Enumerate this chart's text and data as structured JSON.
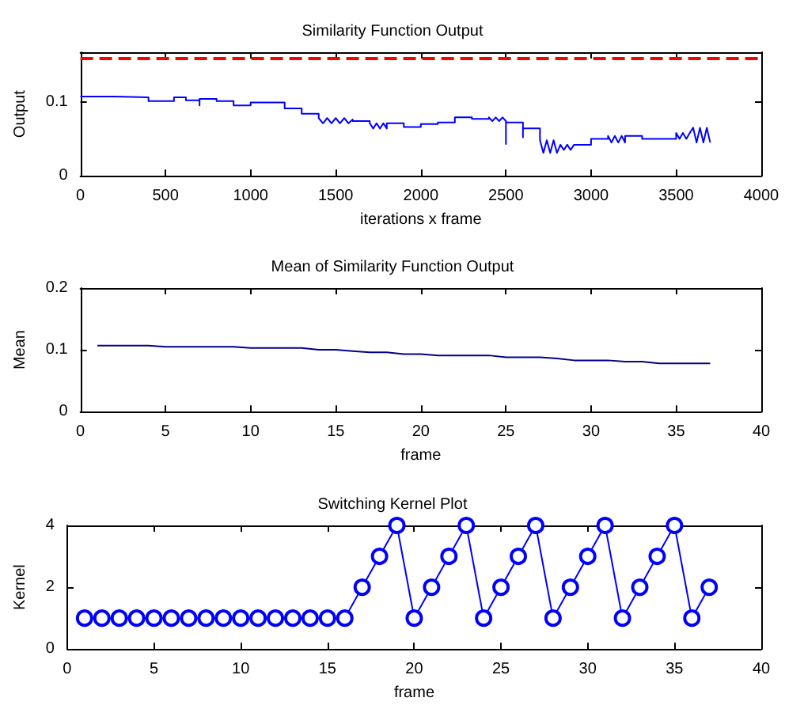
{
  "chart_data": [
    {
      "type": "line",
      "title": "Similarity Function Output",
      "xlabel": "iterations x frame",
      "ylabel": "Output",
      "x": [
        0,
        200,
        200,
        400,
        400,
        550,
        550,
        620,
        620,
        700,
        700,
        700,
        800,
        800,
        900,
        900,
        1000,
        1000,
        1200,
        1200,
        1300,
        1300,
        1400,
        1400,
        1425,
        1450,
        1475,
        1500,
        1525,
        1550,
        1575,
        1600,
        1600,
        1700,
        1700,
        1720,
        1740,
        1760,
        1780,
        1800,
        1800,
        1900,
        1900,
        2000,
        2000,
        2100,
        2100,
        2200,
        2200,
        2300,
        2300,
        2400,
        2400,
        2420,
        2440,
        2460,
        2480,
        2500,
        2500,
        2500,
        2600,
        2600,
        2600,
        2700,
        2700,
        2720,
        2740,
        2760,
        2780,
        2800,
        2820,
        2840,
        2860,
        2880,
        2900,
        2900,
        3000,
        3000,
        3100,
        3100,
        3120,
        3140,
        3160,
        3180,
        3200,
        3200,
        3300,
        3300,
        3400,
        3400,
        3500,
        3500,
        3520,
        3540,
        3560,
        3580,
        3600,
        3620,
        3640,
        3660,
        3680,
        3700
      ],
      "series": [
        {
          "color": "#0000ff",
          "values": [
            0.107,
            0.107,
            0.106,
            0.106,
            0.101,
            0.101,
            0.106,
            0.106,
            0.102,
            0.102,
            0.095,
            0.104,
            0.104,
            0.101,
            0.101,
            0.095,
            0.095,
            0.099,
            0.099,
            0.091,
            0.091,
            0.084,
            0.084,
            0.078,
            0.071,
            0.078,
            0.071,
            0.078,
            0.071,
            0.078,
            0.071,
            0.076,
            0.074,
            0.074,
            0.071,
            0.064,
            0.071,
            0.064,
            0.071,
            0.064,
            0.071,
            0.071,
            0.066,
            0.066,
            0.07,
            0.07,
            0.072,
            0.072,
            0.079,
            0.079,
            0.077,
            0.077,
            0.079,
            0.074,
            0.079,
            0.074,
            0.079,
            0.074,
            0.043,
            0.072,
            0.072,
            0.052,
            0.064,
            0.064,
            0.048,
            0.031,
            0.048,
            0.031,
            0.048,
            0.031,
            0.042,
            0.035,
            0.042,
            0.035,
            0.042,
            0.042,
            0.042,
            0.05,
            0.05,
            0.054,
            0.045,
            0.054,
            0.045,
            0.054,
            0.045,
            0.054,
            0.054,
            0.05,
            0.05,
            0.05,
            0.05,
            0.058,
            0.05,
            0.058,
            0.05,
            0.058,
            0.065,
            0.045,
            0.065,
            0.045,
            0.065,
            0.045
          ]
        }
      ],
      "xlim": [
        0,
        4000
      ],
      "xticks": [
        0,
        500,
        1000,
        1500,
        2000,
        2500,
        3000,
        3500,
        4000
      ],
      "ylim": [
        0,
        0.167
      ],
      "yticks": [
        0,
        0.1
      ],
      "ref_lines": [
        {
          "axis": "y",
          "value": 0.16,
          "color": "#ff0000",
          "line_style": "dashed"
        }
      ],
      "grid": false,
      "marker": "none"
    },
    {
      "type": "line",
      "title": "Mean of Similarity Function Output",
      "xlabel": "frame",
      "ylabel": "Mean",
      "x": [
        1,
        2,
        3,
        4,
        5,
        6,
        7,
        8,
        9,
        10,
        11,
        12,
        13,
        14,
        15,
        16,
        17,
        18,
        19,
        20,
        21,
        22,
        23,
        24,
        25,
        26,
        27,
        28,
        29,
        30,
        31,
        32,
        33,
        34,
        35,
        36,
        37
      ],
      "series": [
        {
          "color": "#00008b",
          "values": [
            0.107,
            0.107,
            0.107,
            0.107,
            0.105,
            0.105,
            0.105,
            0.105,
            0.105,
            0.103,
            0.103,
            0.103,
            0.103,
            0.1,
            0.1,
            0.098,
            0.096,
            0.096,
            0.093,
            0.093,
            0.091,
            0.091,
            0.091,
            0.091,
            0.088,
            0.088,
            0.088,
            0.086,
            0.083,
            0.083,
            0.083,
            0.081,
            0.081,
            0.078,
            0.078,
            0.078,
            0.078
          ]
        }
      ],
      "xlim": [
        0,
        40
      ],
      "xticks": [
        0,
        5,
        10,
        15,
        20,
        25,
        30,
        35,
        40
      ],
      "ylim": [
        0,
        0.2
      ],
      "yticks": [
        0,
        0.1,
        0.2
      ],
      "grid": false,
      "marker": "none"
    },
    {
      "type": "line",
      "title": "Switching Kernel Plot",
      "xlabel": "frame",
      "ylabel": "Kernel",
      "x": [
        1,
        2,
        3,
        4,
        5,
        6,
        7,
        8,
        9,
        10,
        11,
        12,
        13,
        14,
        15,
        16,
        17,
        18,
        19,
        20,
        21,
        22,
        23,
        24,
        25,
        26,
        27,
        28,
        29,
        30,
        31,
        32,
        33,
        34,
        35,
        36,
        37
      ],
      "series": [
        {
          "color": "#0000ff",
          "values": [
            1,
            1,
            1,
            1,
            1,
            1,
            1,
            1,
            1,
            1,
            1,
            1,
            1,
            1,
            1,
            1,
            2,
            3,
            4,
            1,
            2,
            3,
            4,
            1,
            2,
            3,
            4,
            1,
            2,
            3,
            4,
            1,
            2,
            3,
            4,
            1,
            2
          ]
        }
      ],
      "xlim": [
        0,
        40
      ],
      "xticks": [
        0,
        5,
        10,
        15,
        20,
        25,
        30,
        35,
        40
      ],
      "ylim": [
        0,
        4
      ],
      "yticks": [
        0,
        2,
        4
      ],
      "grid": false,
      "marker": "circle"
    }
  ]
}
